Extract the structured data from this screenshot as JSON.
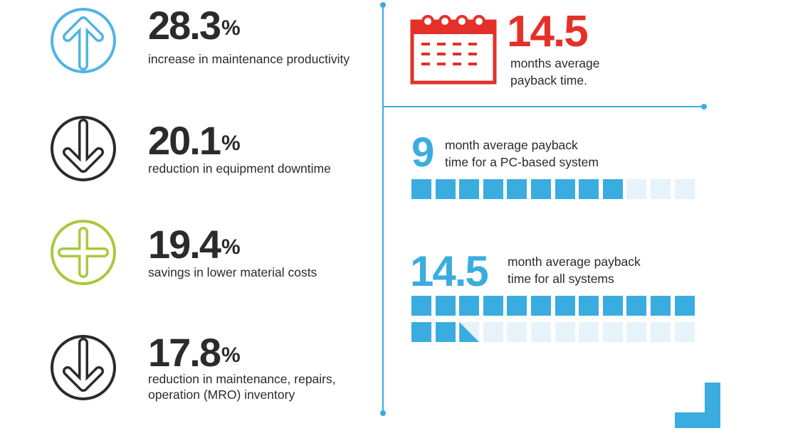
{
  "stats": [
    {
      "value": "28.3",
      "symbol": "%",
      "desc": "increase in maintenance productivity",
      "icon": "up-arrow-circle-icon",
      "color": "#4fb5e3"
    },
    {
      "value": "20.1",
      "symbol": "%",
      "desc": "reduction in equipment downtime",
      "icon": "down-arrow-circle-icon",
      "color": "#2b2b2b"
    },
    {
      "value": "19.4",
      "symbol": "%",
      "desc": "savings in lower material costs",
      "icon": "plus-circle-icon",
      "color": "#a9c93a"
    },
    {
      "value": "17.8",
      "symbol": "%",
      "desc_line1": "reduction in maintenance, repairs,",
      "desc_line2": "operation (MRO) inventory",
      "icon": "down-arrow-circle-icon",
      "color": "#2b2b2b"
    }
  ],
  "payback": {
    "value": "14.5",
    "desc_line1": "months average",
    "desc_line2": "payback time.",
    "icon": "calendar-icon",
    "color": "#e5302a"
  },
  "pc_based": {
    "value": "9",
    "desc_line1": "month average payback",
    "desc_line2": "time for a PC-based system",
    "filled_of_12": 9
  },
  "all_systems": {
    "value": "14.5",
    "desc_line1": "month average payback",
    "desc_line2": "time for all systems",
    "filled_of_24": 14.5
  },
  "accent_color": "#3aace0"
}
